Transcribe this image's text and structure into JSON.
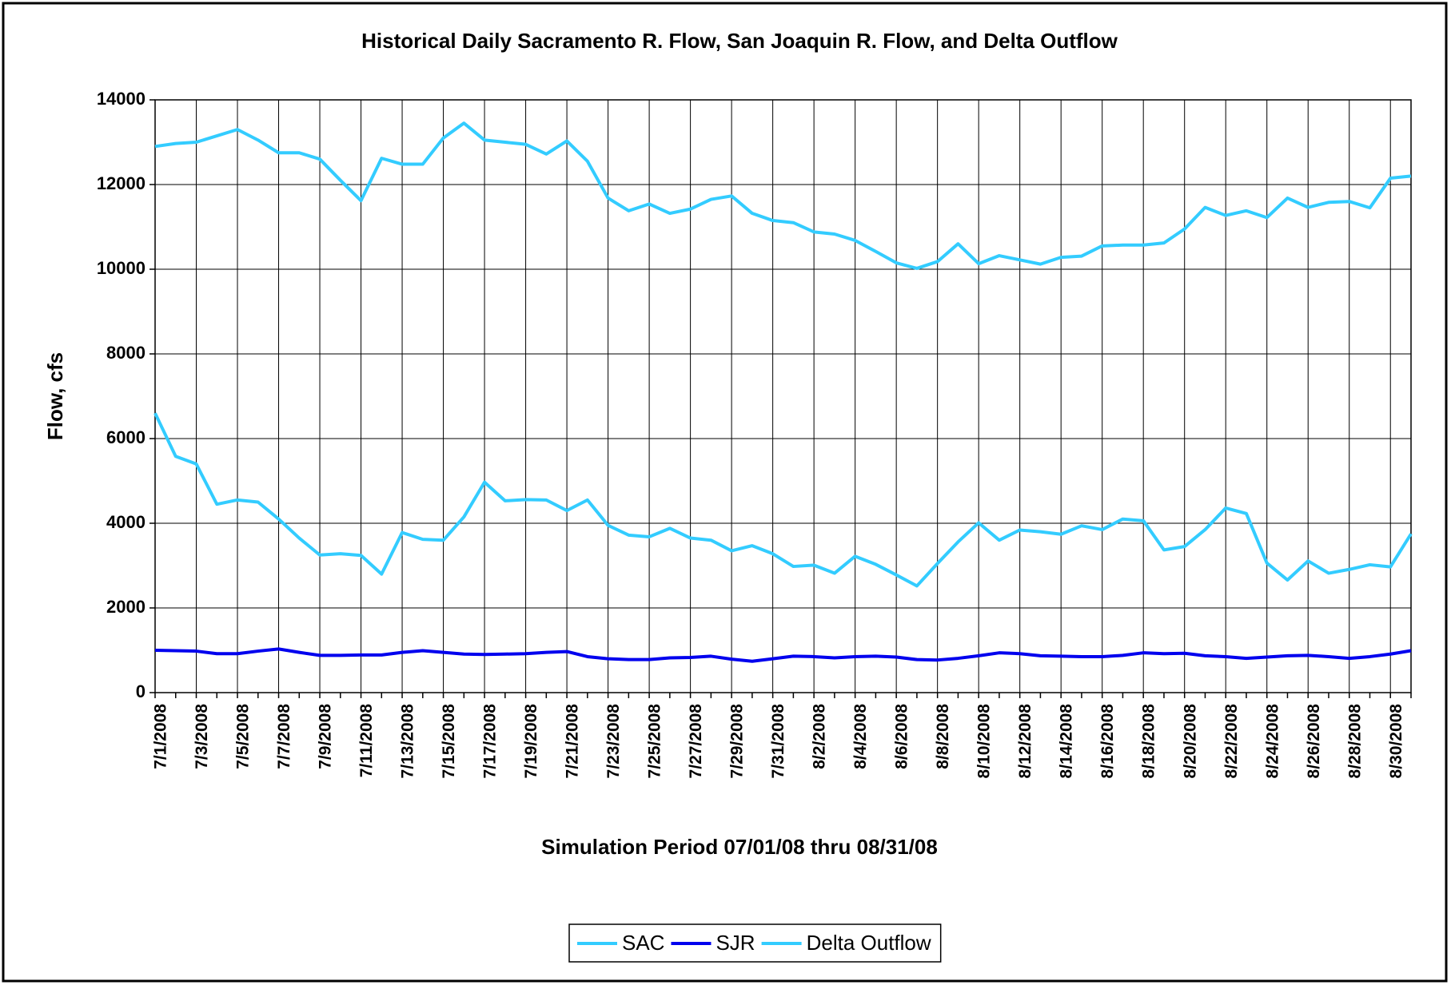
{
  "chart_data": {
    "type": "line",
    "title": "Historical Daily Sacramento R. Flow, San Joaquin R. Flow, and Delta Outflow",
    "x_label": "Simulation Period 07/01/08 thru 08/31/08",
    "y_label": "Flow,  cfs",
    "categories": [
      "7/1/2008",
      null,
      "7/3/2008",
      null,
      "7/5/2008",
      null,
      "7/7/2008",
      null,
      "7/9/2008",
      null,
      "7/11/2008",
      null,
      "7/13/2008",
      null,
      "7/15/2008",
      null,
      "7/17/2008",
      null,
      "7/19/2008",
      null,
      "7/21/2008",
      null,
      "7/23/2008",
      null,
      "7/25/2008",
      null,
      "7/27/2008",
      null,
      "7/29/2008",
      null,
      "7/31/2008",
      null,
      "8/2/2008",
      null,
      "8/4/2008",
      null,
      "8/6/2008",
      null,
      "8/8/2008",
      null,
      "8/10/2008",
      null,
      "8/12/2008",
      null,
      "8/14/2008",
      null,
      "8/16/2008",
      null,
      "8/18/2008",
      null,
      "8/20/2008",
      null,
      "8/22/2008",
      null,
      "8/24/2008",
      null,
      "8/26/2008",
      null,
      "8/28/2008",
      null,
      "8/30/2008",
      null
    ],
    "series": [
      {
        "name": "SAC",
        "color": "#33ccff",
        "values": [
          12900,
          12970,
          13000,
          13150,
          13300,
          13050,
          12750,
          12750,
          12600,
          12100,
          11620,
          12620,
          12480,
          12480,
          13100,
          13450,
          13050,
          13000,
          12950,
          12720,
          13030,
          12550,
          11680,
          11380,
          11540,
          11320,
          11420,
          11650,
          11730,
          11320,
          11150,
          11100,
          10880,
          10830,
          10680,
          10420,
          10150,
          10020,
          10180,
          10600,
          10130,
          10320,
          10220,
          10120,
          10280,
          10310,
          10550,
          10570,
          10570,
          10620,
          10950,
          11460,
          11270,
          11380,
          11220,
          11680,
          11460,
          11580,
          11600,
          11450,
          12150,
          12200
        ]
      },
      {
        "name": "SJR",
        "color": "#0000ee",
        "values": [
          1000,
          990,
          980,
          920,
          920,
          980,
          1030,
          950,
          880,
          880,
          890,
          890,
          950,
          990,
          950,
          910,
          900,
          910,
          920,
          950,
          970,
          850,
          800,
          780,
          780,
          820,
          830,
          860,
          790,
          740,
          800,
          860,
          850,
          820,
          850,
          860,
          840,
          780,
          770,
          810,
          870,
          940,
          920,
          870,
          860,
          850,
          850,
          880,
          940,
          920,
          930,
          870,
          850,
          810,
          840,
          870,
          880,
          850,
          810,
          850,
          910,
          990
        ]
      },
      {
        "name": "Delta Outflow",
        "color": "#33ccff",
        "values": [
          6600,
          5580,
          5400,
          4450,
          4550,
          4500,
          4100,
          3650,
          3250,
          3280,
          3240,
          2800,
          3780,
          3620,
          3600,
          4150,
          4970,
          4530,
          4560,
          4550,
          4300,
          4550,
          3950,
          3720,
          3680,
          3880,
          3650,
          3600,
          3350,
          3470,
          3280,
          2980,
          3010,
          2820,
          3220,
          3030,
          2780,
          2520,
          3050,
          3560,
          4010,
          3600,
          3840,
          3800,
          3740,
          3940,
          3850,
          4100,
          4060,
          3370,
          3450,
          3850,
          4360,
          4230,
          3060,
          2660,
          3110,
          2820,
          2910,
          3020,
          2970,
          3750
        ]
      }
    ],
    "ylim": [
      0,
      14000
    ],
    "yticks": [
      0,
      2000,
      4000,
      6000,
      8000,
      10000,
      12000,
      14000
    ],
    "grid": true,
    "legend": "bottom"
  }
}
